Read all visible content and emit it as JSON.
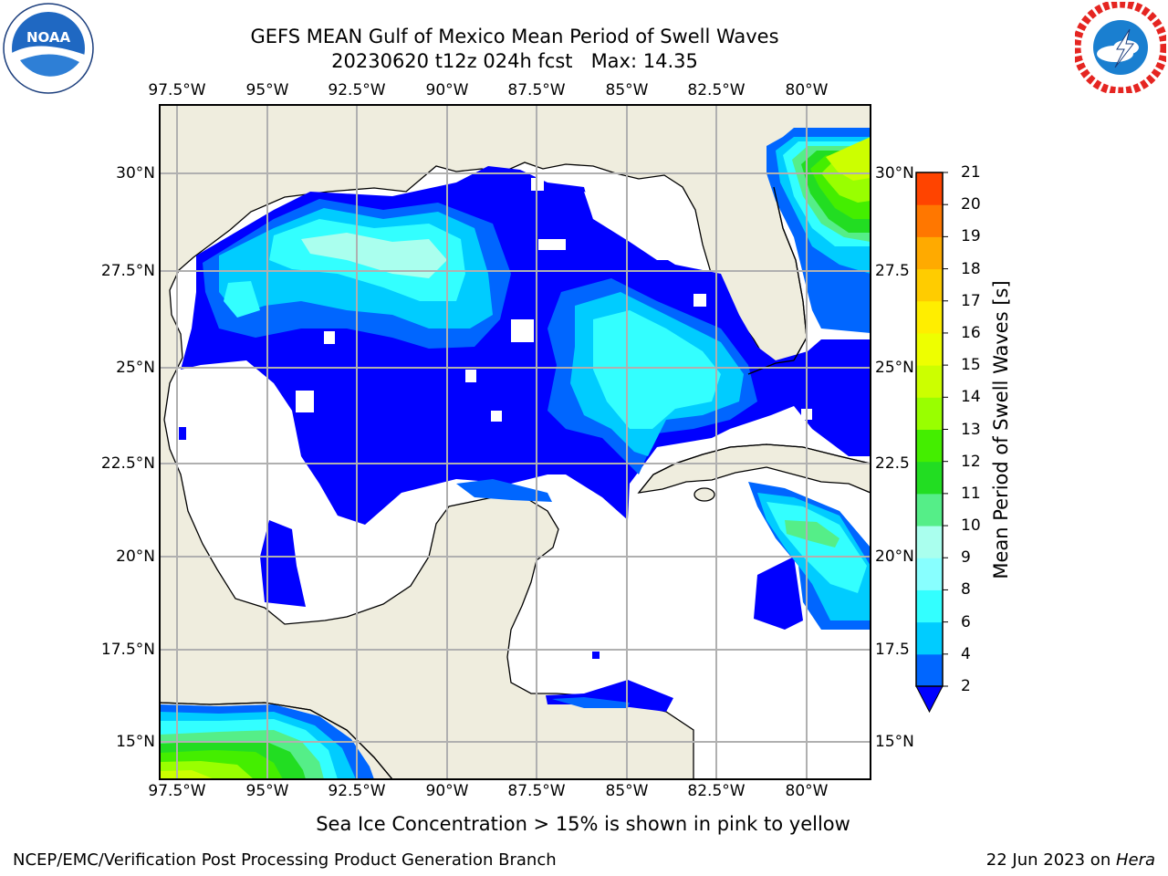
{
  "title_line1": "GEFS MEAN Gulf of Mexico Mean Period of Swell Waves",
  "title_line2": "20230620 t12z 024h fcst   Max: 14.35",
  "longitude_labels": [
    "97.5°W",
    "95°W",
    "92.5°W",
    "90°W",
    "87.5°W",
    "85°W",
    "82.5°W",
    "80°W"
  ],
  "latitude_labels_left": [
    "30°N",
    "27.5°N",
    "25°N",
    "22.5°N",
    "20°N",
    "17.5°N",
    "15°N"
  ],
  "latitude_labels_right": [
    "30°N",
    "27.5",
    "25°N",
    "22.5",
    "20°N",
    "17.5",
    "15°N"
  ],
  "colorbar": {
    "title": "Mean Period of Swell Waves [s]",
    "ticks": [
      "2",
      "4",
      "6",
      "8",
      "9",
      "10",
      "11",
      "12",
      "13",
      "14",
      "15",
      "16",
      "17",
      "18",
      "19",
      "20",
      "21"
    ],
    "colors": [
      "#0066ff",
      "#00ccff",
      "#33ffff",
      "#88ffff",
      "#aaffee",
      "#55ee88",
      "#22dd22",
      "#44ee00",
      "#99ff00",
      "#ccff00",
      "#eeff00",
      "#ffee00",
      "#ffcc00",
      "#ffaa00",
      "#ff7700",
      "#ff4400",
      "#ff1100"
    ],
    "extend_color": "#0000ff"
  },
  "sea_ice_note": "Sea Ice Concentration > 15% is shown in pink to yellow",
  "footer_left": "NCEP/EMC/Verification Post Processing Product Generation Branch",
  "footer_right_prefix": "22 Jun 2023 on ",
  "footer_right_host": "Hera",
  "logos": {
    "left": "noaa-logo",
    "right": "nws-logo"
  },
  "colors": {
    "land": "#efedde",
    "grid": "#b0b0b0"
  }
}
